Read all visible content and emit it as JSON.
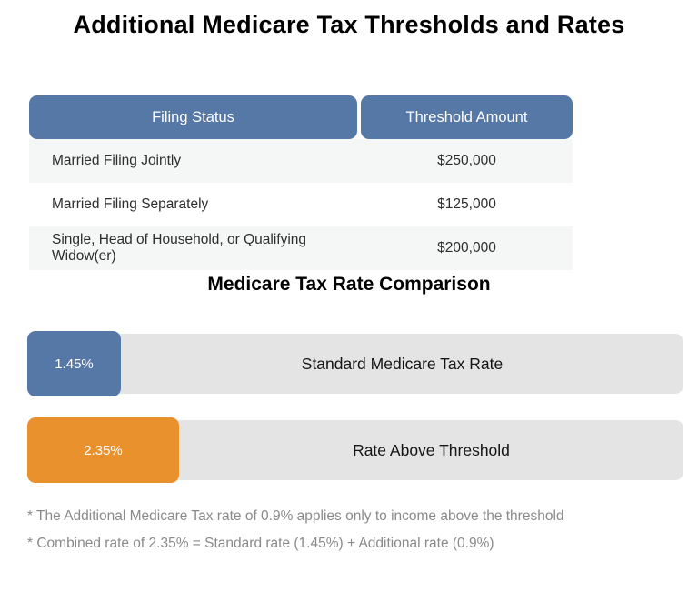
{
  "page": {
    "title": "Additional Medicare Tax Thresholds and Rates"
  },
  "colors": {
    "header_blue": "#5578a7",
    "bar_blue": "#5578a7",
    "bar_orange": "#e8912d",
    "bar_track_gray": "#e4e4e4",
    "row_alt_gray": "#f5f6f6",
    "footnote_gray": "#8a8a8a"
  },
  "table": {
    "columns": [
      "Filing Status",
      "Threshold Amount"
    ],
    "rows": [
      {
        "filing_status": "Married Filing Jointly",
        "threshold": "$250,000"
      },
      {
        "filing_status": "Married Filing Separately",
        "threshold": "$125,000"
      },
      {
        "filing_status": "Single, Head of Household, or Qualifying Widow(er)",
        "threshold": "$200,000"
      }
    ]
  },
  "comparison": {
    "title": "Medicare Tax Rate Comparison",
    "bars": [
      {
        "rate_label": "1.45%",
        "rate_value": 1.45,
        "label": "Standard Medicare Tax Rate",
        "color": "#5578a7"
      },
      {
        "rate_label": "2.35%",
        "rate_value": 2.35,
        "label": "Rate Above Threshold",
        "color": "#e8912d"
      }
    ]
  },
  "footnotes": [
    "* The Additional Medicare Tax rate of 0.9% applies only to income above the threshold",
    "* Combined rate of 2.35% = Standard rate (1.45%) + Additional rate (0.9%)"
  ],
  "chart_data": [
    {
      "type": "table",
      "title": "Additional Medicare Tax Thresholds and Rates",
      "columns": [
        "Filing Status",
        "Threshold Amount"
      ],
      "rows": [
        [
          "Married Filing Jointly",
          250000
        ],
        [
          "Married Filing Separately",
          125000
        ],
        [
          "Single, Head of Household, or Qualifying Widow(er)",
          200000
        ]
      ]
    },
    {
      "type": "bar",
      "orientation": "horizontal",
      "title": "Medicare Tax Rate Comparison",
      "categories": [
        "Standard Medicare Tax Rate",
        "Rate Above Threshold"
      ],
      "values": [
        1.45,
        2.35
      ],
      "unit": "percent",
      "colors": [
        "#5578a7",
        "#e8912d"
      ],
      "annotations": [
        "* The Additional Medicare Tax rate of 0.9% applies only to income above the threshold",
        "* Combined rate of 2.35% = Standard rate (1.45%) + Additional rate (0.9%)"
      ],
      "legend": "none",
      "grid": false
    }
  ]
}
